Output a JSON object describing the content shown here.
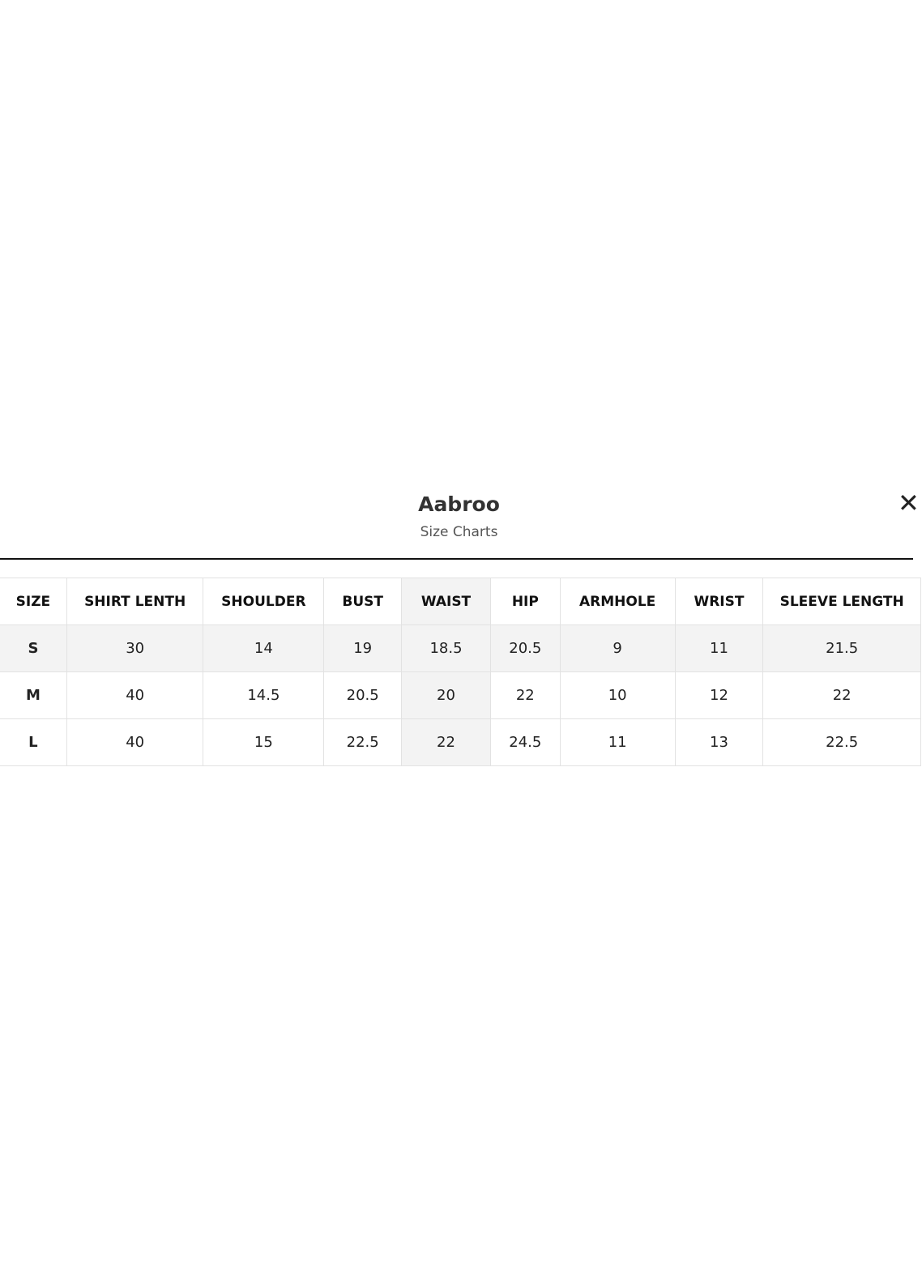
{
  "modal": {
    "title": "Aabroo",
    "subtitle": "Size Charts",
    "close_icon": "close-icon"
  },
  "table": {
    "headers": [
      "SIZE",
      "SHIRT LENTH",
      "SHOULDER",
      "BUST",
      "WAIST",
      "HIP",
      "ARMHOLE",
      "WRIST",
      "SLEEVE LENGTH"
    ],
    "rows": [
      [
        "S",
        "30",
        "14",
        "19",
        "18.5",
        "20.5",
        "9",
        "11",
        "21.5"
      ],
      [
        "M",
        "40",
        "14.5",
        "20.5",
        "20",
        "22",
        "10",
        "12",
        "22"
      ],
      [
        "L",
        "40",
        "15",
        "22.5",
        "22",
        "24.5",
        "11",
        "13",
        "22.5"
      ]
    ]
  }
}
